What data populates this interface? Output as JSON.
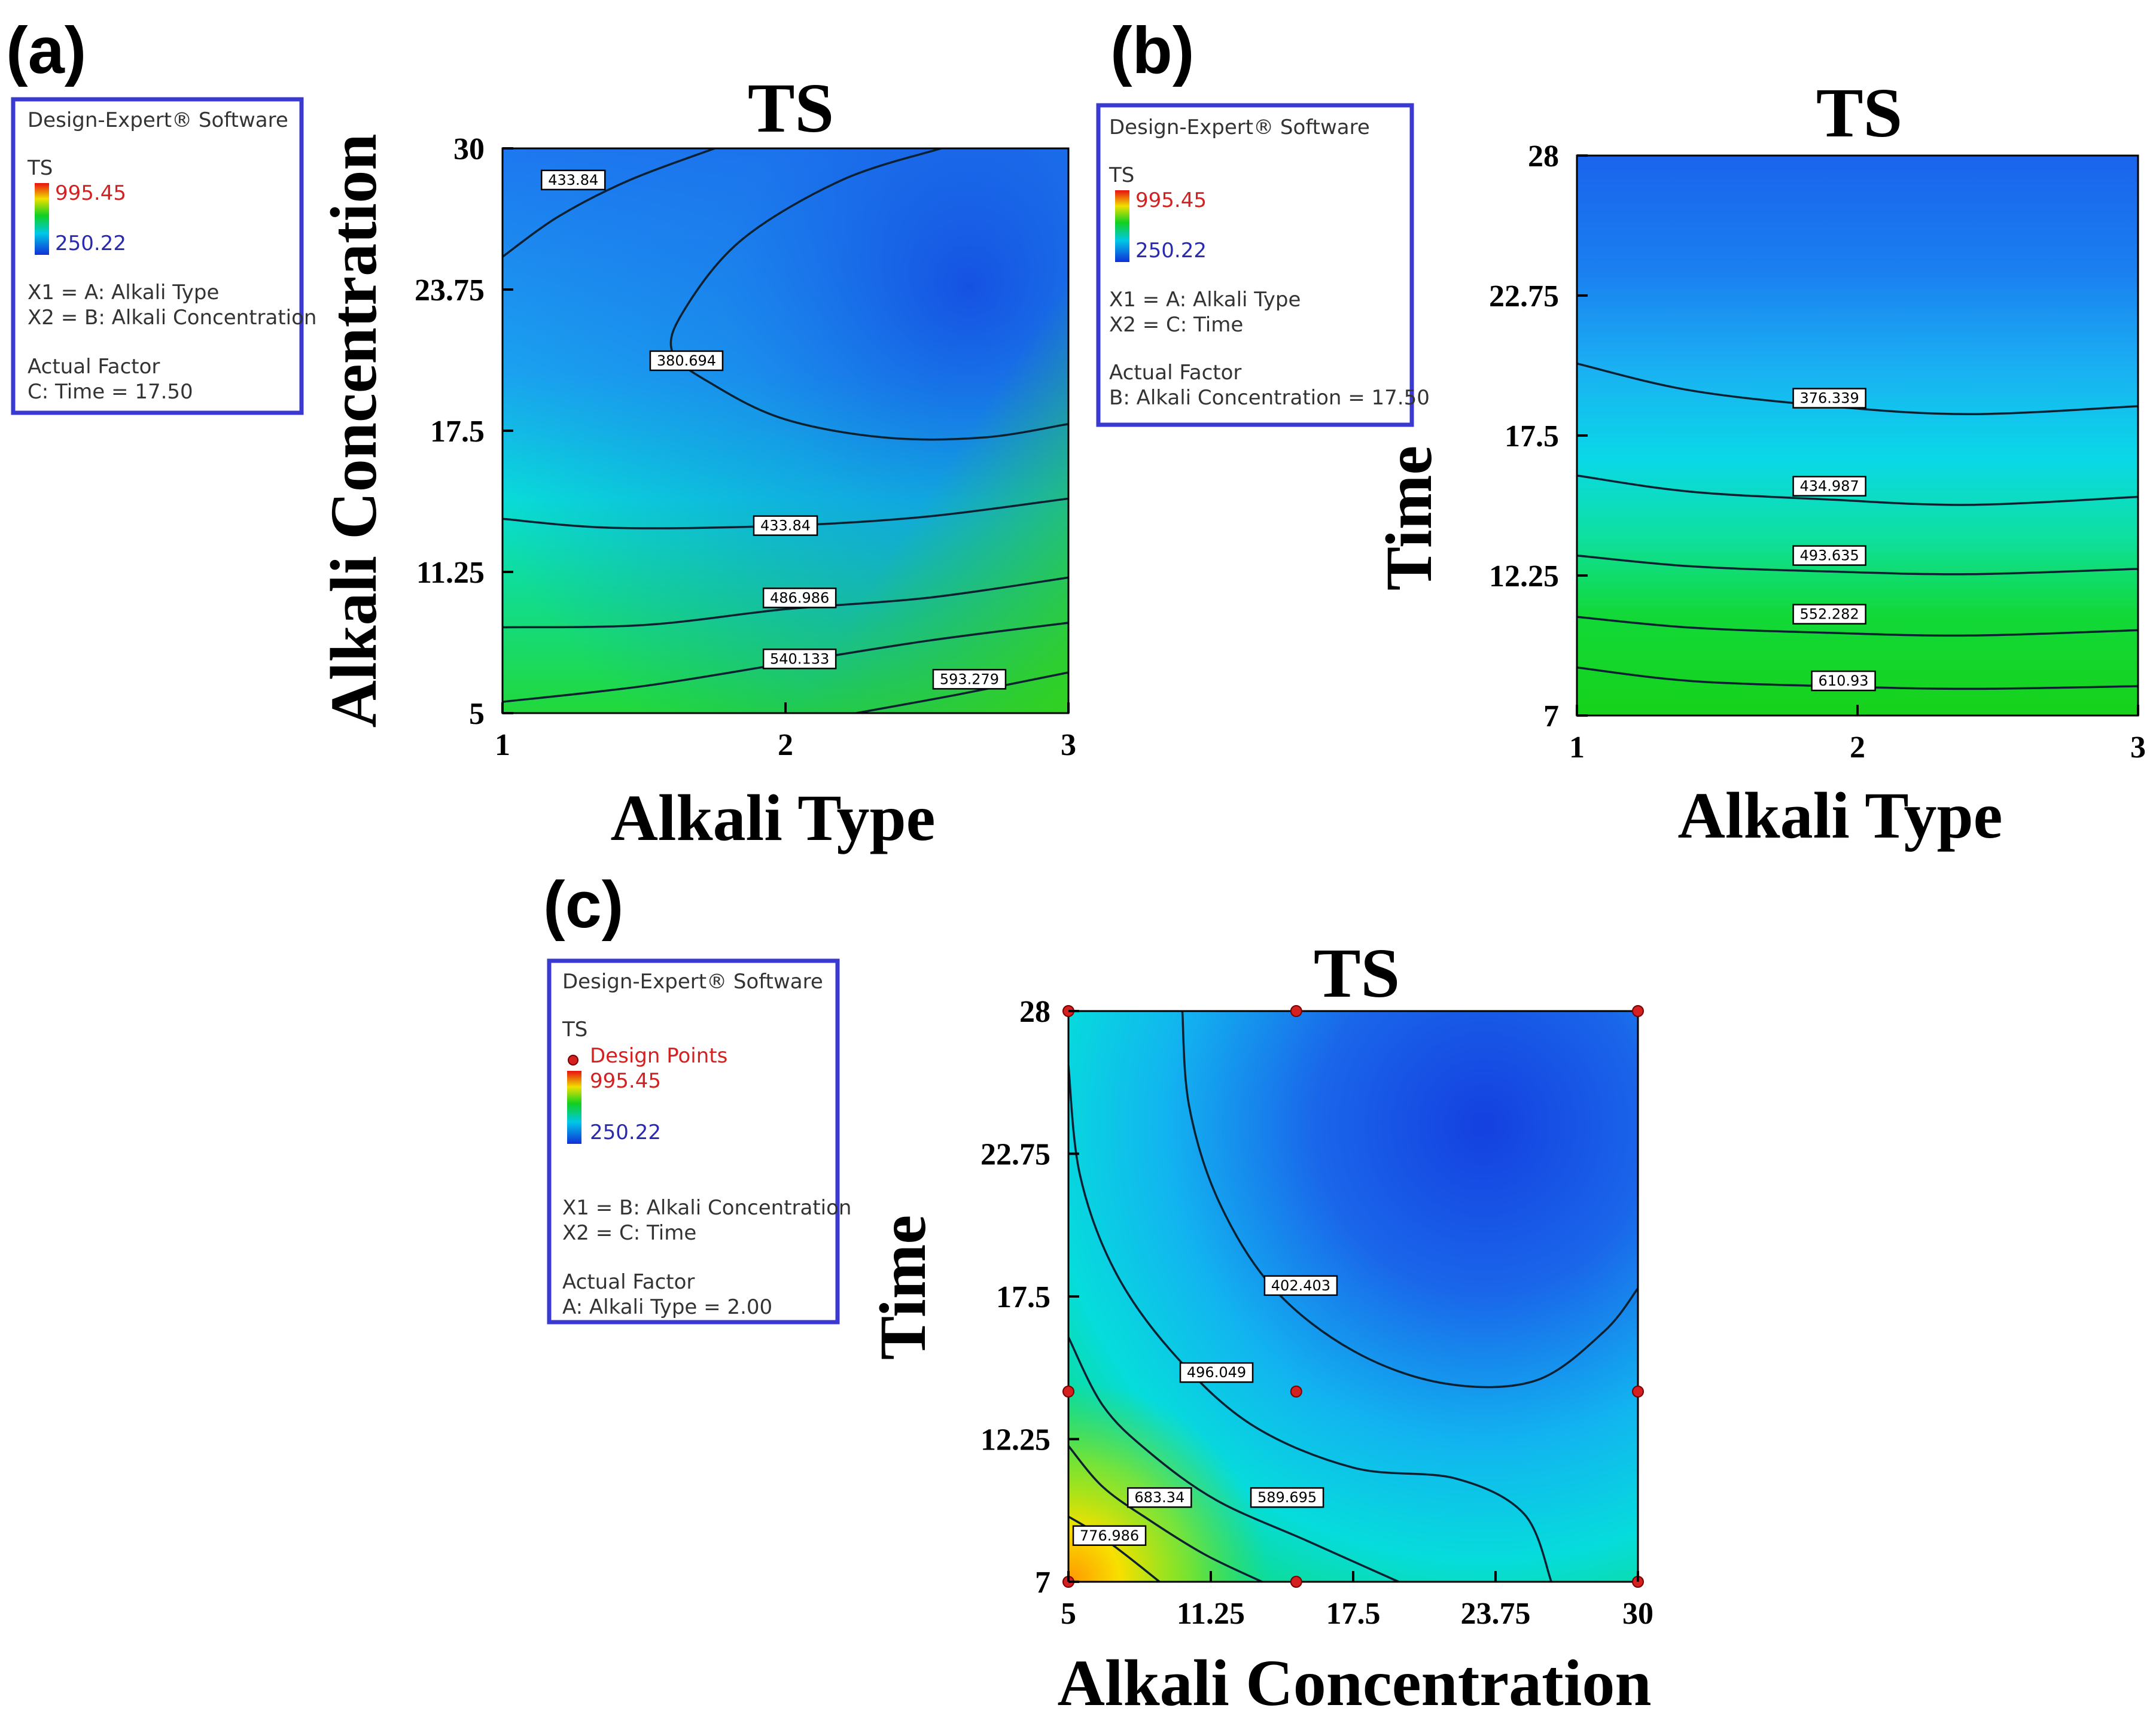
{
  "panels": {
    "a": {
      "letter": "(a)",
      "legend": {
        "software": "Design-Expert® Software",
        "response": "TS",
        "max": "995.45",
        "min": "250.22",
        "x1": "X1 = A: Alkali Type",
        "x2": "X2 = B: Alkali Concentration",
        "actual_factor_heading": "Actual Factor",
        "actual_factor": "C: Time = 17.50"
      }
    },
    "b": {
      "letter": "(b)",
      "legend": {
        "software": "Design-Expert® Software",
        "response": "TS",
        "max": "995.45",
        "min": "250.22",
        "x1": "X1 = A: Alkali Type",
        "x2": "X2 = C: Time",
        "actual_factor_heading": "Actual Factor",
        "actual_factor": "B: Alkali Concentration = 17.50"
      }
    },
    "c": {
      "letter": "(c)",
      "legend": {
        "software": "Design-Expert® Software",
        "response": "TS",
        "design_points": "Design Points",
        "max": "995.45",
        "min": "250.22",
        "x1": "X1 = B: Alkali Concentration",
        "x2": "X2 = C: Time",
        "actual_factor_heading": "Actual Factor",
        "actual_factor": "A: Alkali Type = 2.00"
      }
    }
  },
  "colors": {
    "legend_border": "#3a3ad0",
    "design_point": "#d42020",
    "scale_max": "#d62020",
    "scale_min": "#2a2ab0"
  },
  "chart_data": [
    {
      "type": "contour",
      "panel": "a",
      "title": "TS",
      "xlabel": "Alkali Type",
      "ylabel": "Alkali Concentration",
      "xlim": [
        1,
        3
      ],
      "ylim": [
        5,
        30
      ],
      "xticks": [
        1,
        2,
        3
      ],
      "xtick_labels": [
        "1",
        "2",
        "3"
      ],
      "yticks": [
        5,
        11.25,
        17.5,
        23.75,
        30
      ],
      "ytick_labels": [
        "5",
        "11.25",
        "17.5",
        "23.75",
        "30"
      ],
      "color_range": [
        250.22,
        995.45
      ],
      "contours": [
        {
          "level": "433.84",
          "label_at": [
            1.25,
            28.6
          ],
          "points": [
            [
              1,
              25.2
            ],
            [
              1.2,
              27.0
            ],
            [
              1.45,
              28.6
            ],
            [
              1.75,
              30
            ]
          ]
        },
        {
          "level": "380.694",
          "label_at": [
            1.65,
            20.6
          ],
          "points": [
            [
              3,
              17.8
            ],
            [
              2.7,
              17.2
            ],
            [
              2.35,
              17.2
            ],
            [
              2.0,
              18.0
            ],
            [
              1.75,
              19.5
            ],
            [
              1.6,
              21.0
            ],
            [
              1.65,
              23.0
            ],
            [
              1.85,
              26.0
            ],
            [
              2.2,
              28.6
            ],
            [
              2.55,
              30
            ]
          ]
        },
        {
          "level": "433.84",
          "label_at": [
            2.0,
            13.3
          ],
          "points": [
            [
              1,
              13.6
            ],
            [
              1.4,
              13.2
            ],
            [
              2.0,
              13.3
            ],
            [
              2.5,
              13.7
            ],
            [
              3,
              14.5
            ]
          ]
        },
        {
          "level": "486.986",
          "label_at": [
            2.05,
            10.1
          ],
          "points": [
            [
              1,
              8.8
            ],
            [
              1.5,
              8.9
            ],
            [
              2.0,
              9.6
            ],
            [
              2.5,
              10.1
            ],
            [
              3,
              11.0
            ]
          ]
        },
        {
          "level": "540.133",
          "label_at": [
            2.05,
            7.4
          ],
          "points": [
            [
              1,
              5.5
            ],
            [
              1.5,
              6.2
            ],
            [
              2.0,
              7.2
            ],
            [
              2.5,
              8.2
            ],
            [
              3,
              9.0
            ]
          ]
        },
        {
          "level": "593.279",
          "label_at": [
            2.65,
            6.5
          ],
          "points": [
            [
              2.25,
              5
            ],
            [
              2.6,
              5.8
            ],
            [
              3,
              6.8
            ]
          ]
        }
      ]
    },
    {
      "type": "contour",
      "panel": "b",
      "title": "TS",
      "xlabel": "Alkali Type",
      "ylabel": "Time",
      "xlim": [
        1,
        3
      ],
      "ylim": [
        7,
        28
      ],
      "xticks": [
        1,
        2,
        3
      ],
      "xtick_labels": [
        "1",
        "2",
        "3"
      ],
      "yticks": [
        7,
        12.25,
        17.5,
        22.75,
        28
      ],
      "ytick_labels": [
        "7",
        "12.25",
        "17.5",
        "22.75",
        "28"
      ],
      "color_range": [
        250.22,
        995.45
      ],
      "contours": [
        {
          "level": "376.339",
          "label_at": [
            1.9,
            18.9
          ],
          "points": [
            [
              1,
              20.2
            ],
            [
              1.4,
              19.2
            ],
            [
              1.9,
              18.6
            ],
            [
              2.4,
              18.3
            ],
            [
              3,
              18.6
            ]
          ]
        },
        {
          "level": "434.987",
          "label_at": [
            1.9,
            15.6
          ],
          "points": [
            [
              1,
              16.0
            ],
            [
              1.4,
              15.4
            ],
            [
              1.9,
              15.1
            ],
            [
              2.4,
              14.9
            ],
            [
              3,
              15.2
            ]
          ]
        },
        {
          "level": "493.635",
          "label_at": [
            1.9,
            13.0
          ],
          "points": [
            [
              1,
              13.0
            ],
            [
              1.4,
              12.6
            ],
            [
              1.9,
              12.4
            ],
            [
              2.4,
              12.3
            ],
            [
              3,
              12.5
            ]
          ]
        },
        {
          "level": "552.282",
          "label_at": [
            1.9,
            10.8
          ],
          "points": [
            [
              1,
              10.7
            ],
            [
              1.4,
              10.3
            ],
            [
              1.9,
              10.1
            ],
            [
              2.4,
              10.0
            ],
            [
              3,
              10.2
            ]
          ]
        },
        {
          "level": "610.93",
          "label_at": [
            1.95,
            8.3
          ],
          "points": [
            [
              1,
              8.8
            ],
            [
              1.4,
              8.3
            ],
            [
              1.9,
              8.1
            ],
            [
              2.4,
              8.0
            ],
            [
              3,
              8.1
            ]
          ]
        }
      ]
    },
    {
      "type": "contour",
      "panel": "c",
      "title": "TS",
      "xlabel": "Alkali Concentration",
      "ylabel": "Time",
      "xlim": [
        5,
        30
      ],
      "ylim": [
        7,
        28
      ],
      "xticks": [
        5,
        11.25,
        17.5,
        23.75,
        30
      ],
      "xtick_labels": [
        "5",
        "11.25",
        "17.5",
        "23.75",
        "30"
      ],
      "yticks": [
        7,
        12.25,
        17.5,
        22.75,
        28
      ],
      "ytick_labels": [
        "7",
        "12.25",
        "17.5",
        "22.75",
        "28"
      ],
      "color_range": [
        250.22,
        995.45
      ],
      "contours": [
        {
          "level": "402.403",
          "label_at": [
            15.2,
            17.9
          ],
          "points": [
            [
              10.0,
              28
            ],
            [
              10.3,
              24.5
            ],
            [
              11.6,
              21.0
            ],
            [
              14.0,
              17.8
            ],
            [
              17.5,
              15.5
            ],
            [
              21.5,
              14.3
            ],
            [
              25.5,
              14.4
            ],
            [
              28.5,
              16.2
            ],
            [
              30,
              17.8
            ]
          ]
        },
        {
          "level": "496.049",
          "label_at": [
            11.5,
            14.7
          ],
          "points": [
            [
              5,
              26.0
            ],
            [
              5.5,
              22.0
            ],
            [
              7.0,
              18.5
            ],
            [
              9.5,
              15.5
            ],
            [
              13.0,
              12.8
            ],
            [
              17.5,
              11.2
            ],
            [
              22.0,
              10.8
            ],
            [
              25.0,
              9.5
            ],
            [
              26.2,
              7
            ]
          ]
        },
        {
          "level": "589.695",
          "label_at": [
            14.6,
            10.1
          ],
          "points": [
            [
              5,
              16.0
            ],
            [
              6.5,
              13.5
            ],
            [
              8.5,
              11.8
            ],
            [
              11.5,
              10.0
            ],
            [
              15.5,
              8.5
            ],
            [
              19.5,
              7
            ]
          ]
        },
        {
          "level": "683.34",
          "label_at": [
            9.0,
            10.1
          ],
          "points": [
            [
              5,
              12.0
            ],
            [
              6.5,
              10.5
            ],
            [
              8.5,
              9.3
            ],
            [
              11.0,
              8.0
            ],
            [
              13.5,
              7
            ]
          ]
        },
        {
          "level": "776.986",
          "label_at": [
            6.8,
            8.7
          ],
          "points": [
            [
              5,
              9.4
            ],
            [
              6.2,
              8.8
            ],
            [
              7.5,
              8.0
            ],
            [
              9.0,
              7
            ]
          ]
        }
      ],
      "design_points": [
        [
          5,
          28
        ],
        [
          15,
          28
        ],
        [
          30,
          28
        ],
        [
          5,
          14
        ],
        [
          15,
          14
        ],
        [
          30,
          14
        ],
        [
          5,
          7
        ],
        [
          15,
          7
        ],
        [
          30,
          7
        ]
      ]
    }
  ]
}
